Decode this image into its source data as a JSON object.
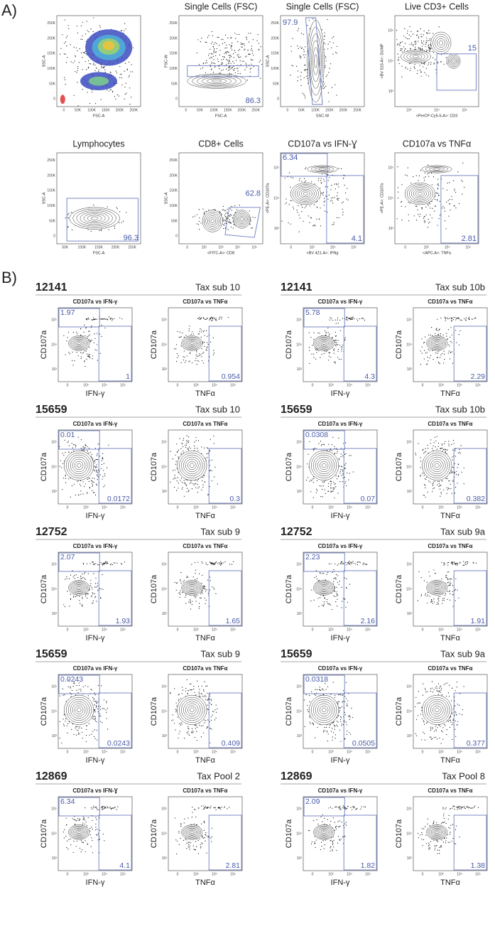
{
  "panel_a": {
    "label": "A)",
    "plots": [
      {
        "x_label": "FSC-A",
        "y_label": "SSC-A",
        "x_ticks": [
          "0",
          "50K",
          "100K",
          "150K",
          "200K",
          "250K"
        ],
        "y_ticks": [
          "0",
          "50K",
          "100K",
          "150K",
          "200K",
          "250K"
        ]
      },
      {
        "title": "Single Cells (FSC)",
        "x_label": "FSC-A",
        "y_label": "FSC-W",
        "gates": [
          86.3
        ],
        "x_ticks": [
          "0",
          "50K",
          "100K",
          "150K",
          "200K",
          "250K"
        ],
        "y_ticks": [
          "0",
          "50K",
          "100K",
          "150K",
          "200K",
          "250K"
        ]
      },
      {
        "title": "Single Cells (FSC)",
        "x_label": "SSC-W",
        "y_label": "SSC-A",
        "gates": [
          97.9
        ],
        "x_ticks": [
          "0",
          "50K",
          "100K",
          "150K",
          "200K",
          "250K"
        ],
        "y_ticks": [
          "0",
          "50K",
          "100K",
          "150K",
          "200K",
          "250K"
        ]
      },
      {
        "title": "Live CD3+ Cells",
        "x_label": "<PerCP-Cy5-5-A>: CD3",
        "y_label": "<BV 510-A>: DUMP",
        "gates": [
          15
        ],
        "x_ticks": [
          "10³",
          "10⁴",
          "10⁵"
        ],
        "y_ticks": [
          "10³",
          "10⁴",
          "10⁵"
        ]
      },
      {
        "title": "Lymphocytes",
        "x_label": "FSC-A",
        "y_label": "SSC-A",
        "gates": [
          96.3
        ],
        "x_ticks": [
          "50K",
          "100K",
          "150K",
          "200K",
          "250K"
        ],
        "y_ticks": [
          "0",
          "50K",
          "100K",
          "150K",
          "200K",
          "250K"
        ]
      },
      {
        "title": "CD8+ Cells",
        "x_label": "<FITC-A>: CD8",
        "y_label": "SSC-A",
        "gates": [
          62.8
        ],
        "x_ticks": [
          "0",
          "10²",
          "10³",
          "10⁴",
          "10⁵"
        ],
        "y_ticks": [
          "0",
          "50K",
          "100K",
          "150K",
          "200K",
          "250K"
        ]
      },
      {
        "title": "CD107a vs IFN-Ɣ",
        "x_label": "<BV 421-A>: IFNg",
        "y_label": "<PE-A>: CD107a",
        "gates": [
          6.34,
          4.1
        ],
        "x_ticks": [
          "0",
          "10³",
          "10⁴",
          "10⁵"
        ],
        "y_ticks": [
          "10³",
          "10⁴",
          "10⁵"
        ]
      },
      {
        "title": "CD107a vs TNFα",
        "x_label": "<APC-A>: TNFa",
        "y_label": "<PE-A>: CD107a",
        "gates": [
          2.81
        ],
        "x_ticks": [
          "0",
          "10³",
          "10⁴",
          "10⁵"
        ],
        "y_ticks": [
          "10³",
          "10⁴",
          "10⁵"
        ]
      }
    ]
  },
  "panel_b": {
    "label": "B)",
    "x_ticks": [
      "0",
      "10³",
      "10⁴",
      "10⁵"
    ],
    "y_ticks": [
      "10³",
      "10⁴",
      "10⁵"
    ],
    "groups": [
      {
        "donor": "12141",
        "condition": "Tax sub 10",
        "plots": [
          {
            "title": "CD107a vs IFN-γ",
            "x_label": "IFN-γ",
            "y_label": "CD107a",
            "gates": [
              1.97,
              1
            ]
          },
          {
            "title": "CD107a vs TNFα",
            "x_label": "TNFα",
            "y_label": "CD107a",
            "gates": [
              0.954
            ]
          }
        ]
      },
      {
        "donor": "12141",
        "condition": "Tax sub 10b",
        "plots": [
          {
            "title": "CD107a vs IFN-γ",
            "x_label": "IFN-γ",
            "y_label": "CD107a",
            "gates": [
              5.78,
              4.3
            ]
          },
          {
            "title": "CD107a vs TNFα",
            "x_label": "TNFα",
            "y_label": "CD107a",
            "gates": [
              2.29
            ]
          }
        ]
      },
      {
        "donor": "15659",
        "condition": "Tax sub 10",
        "plots": [
          {
            "title": "CD107a vs IFN-γ",
            "x_label": "IFN-γ",
            "y_label": "CD107a",
            "gates": [
              0.01,
              0.0172
            ]
          },
          {
            "title": "CD107a vs TNFα",
            "x_label": "TNFα",
            "y_label": "CD107a",
            "gates": [
              0.3
            ]
          }
        ]
      },
      {
        "donor": "15659",
        "condition": "Tax sub 10b",
        "plots": [
          {
            "title": "CD107a vs IFN-γ",
            "x_label": "IFN-γ",
            "y_label": "CD107a",
            "gates": [
              0.0308,
              0.07
            ]
          },
          {
            "title": "CD107a vs TNFα",
            "x_label": "TNFα",
            "y_label": "CD107a",
            "gates": [
              0.382
            ]
          }
        ]
      },
      {
        "donor": "12752",
        "condition": "Tax sub 9",
        "plots": [
          {
            "title": "CD107a vs IFN-γ",
            "x_label": "IFN-γ",
            "y_label": "CD107a",
            "gates": [
              2.07,
              1.93
            ]
          },
          {
            "title": "CD107a vs TNFα",
            "x_label": "TNFα",
            "y_label": "CD107a",
            "gates": [
              1.65
            ]
          }
        ]
      },
      {
        "donor": "12752",
        "condition": "Tax sub 9a",
        "plots": [
          {
            "title": "CD107a vs IFN-γ",
            "x_label": "IFN-γ",
            "y_label": "CD107a",
            "gates": [
              2.23,
              2.16
            ]
          },
          {
            "title": "CD107a vs TNFα",
            "x_label": "TNFα",
            "y_label": "CD107a",
            "gates": [
              1.91
            ]
          }
        ]
      },
      {
        "donor": "15659",
        "condition": "Tax sub 9",
        "plots": [
          {
            "title": "CD107a vs IFN-γ",
            "x_label": "IFN-γ",
            "y_label": "CD107a",
            "gates": [
              0.0243,
              0.0243
            ]
          },
          {
            "title": "CD107a vs TNFα",
            "x_label": "TNFα",
            "y_label": "CD107a",
            "gates": [
              0.409
            ]
          }
        ]
      },
      {
        "donor": "15659",
        "condition": "Tax sub 9a",
        "plots": [
          {
            "title": "CD107a vs IFN-γ",
            "x_label": "IFN-γ",
            "y_label": "CD107a",
            "gates": [
              0.0318,
              0.0505
            ]
          },
          {
            "title": "CD107a vs TNFα",
            "x_label": "TNFα",
            "y_label": "CD107a",
            "gates": [
              0.377
            ]
          }
        ]
      },
      {
        "donor": "12869",
        "condition": "Tax Pool 2",
        "plots": [
          {
            "title": "CD107a vs IFN-Ɣ",
            "x_label": "IFN-γ",
            "y_label": "CD107a",
            "gates": [
              6.34,
              4.1
            ]
          },
          {
            "title": "CD107a vs TNFα",
            "x_label": "TNFα",
            "y_label": "CD107a",
            "gates": [
              2.81
            ]
          }
        ]
      },
      {
        "donor": "12869",
        "condition": "Tax Pool 8",
        "plots": [
          {
            "title": "CD107a vs IFN-γ",
            "x_label": "IFN-γ",
            "y_label": "CD107a",
            "gates": [
              2.09,
              1.82
            ]
          },
          {
            "title": "CD107a vs TNFα",
            "x_label": "TNFα",
            "y_label": "CD107a",
            "gates": [
              1.38
            ]
          }
        ]
      }
    ]
  }
}
